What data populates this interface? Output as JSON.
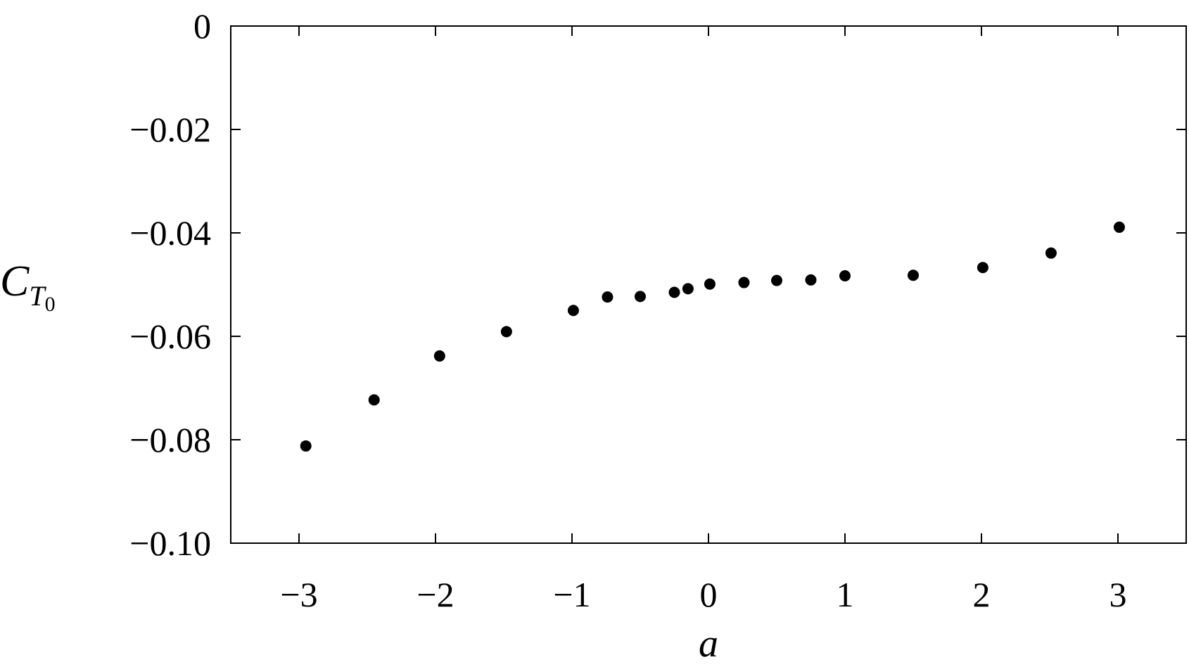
{
  "chart_data": {
    "type": "scatter",
    "title": "",
    "xlabel": "a",
    "ylabel": "C",
    "ylabel_subscript": "T",
    "ylabel_subsubscript": "0",
    "xlim": [
      -3.5,
      3.5
    ],
    "ylim": [
      -0.1,
      0
    ],
    "xticks": [
      -3,
      -2,
      -1,
      0,
      1,
      2,
      3
    ],
    "xtick_labels": [
      "−3",
      "−2",
      "−1",
      "0",
      "1",
      "2",
      "3"
    ],
    "yticks": [
      0,
      -0.02,
      -0.04,
      -0.06,
      -0.08,
      -0.1
    ],
    "ytick_labels": [
      "0",
      "−0.02",
      "−0.04",
      "−0.06",
      "−0.08",
      "−0.10"
    ],
    "grid": false,
    "marker_color": "#000000",
    "series": [
      {
        "x": [
          -2.95,
          -2.45,
          -1.97,
          -1.48,
          -0.99,
          -0.74,
          -0.5,
          -0.25,
          -0.15,
          0.01,
          0.26,
          0.5,
          0.75,
          1.0,
          1.5,
          2.01,
          2.51,
          3.01
        ],
        "y": [
          -0.0812,
          -0.0723,
          -0.0638,
          -0.0591,
          -0.055,
          -0.0524,
          -0.0523,
          -0.0515,
          -0.0508,
          -0.0499,
          -0.0496,
          -0.0492,
          -0.0491,
          -0.0483,
          -0.0482,
          -0.0467,
          -0.0439,
          -0.0389
        ]
      }
    ]
  }
}
